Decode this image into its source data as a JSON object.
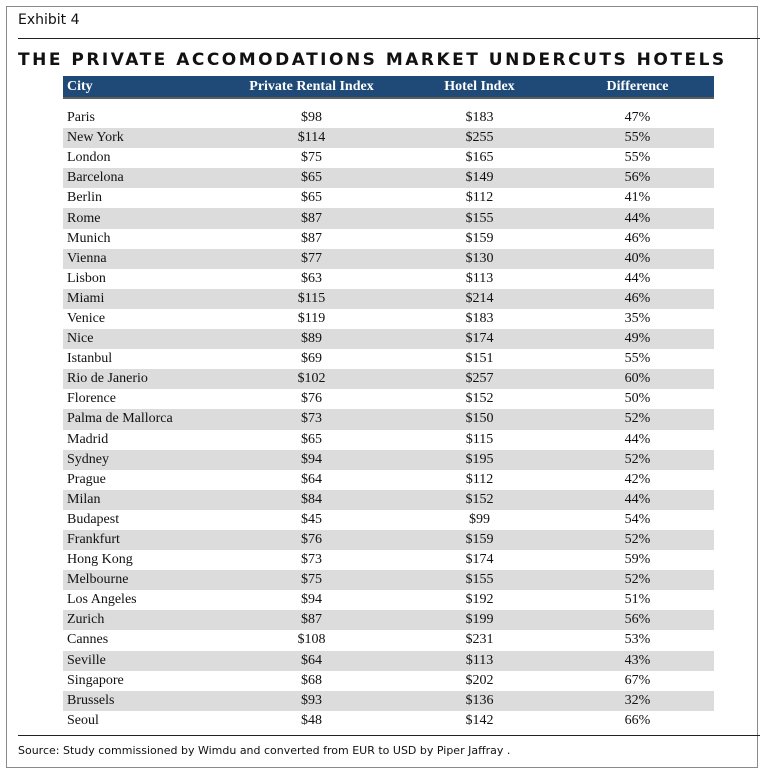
{
  "exhibit_label": "Exhibit 4",
  "source_note": "Source: Study commissioned by Wimdu and converted from EUR to USD by Piper Jaffray .",
  "colors": {
    "header_bg": "#1f4a78",
    "header_text": "#ffffff",
    "stripe": "#dcdcdc"
  },
  "chart_data": {
    "type": "table",
    "title": "THE PRIVATE ACCOMODATIONS MARKET UNDERCUTS HOTELS",
    "columns": [
      "City",
      "Private Rental Index",
      "Hotel Index",
      "Difference"
    ],
    "rows": [
      [
        "Paris",
        "$98",
        "$183",
        "47%"
      ],
      [
        "New York",
        "$114",
        "$255",
        "55%"
      ],
      [
        "London",
        "$75",
        "$165",
        "55%"
      ],
      [
        "Barcelona",
        "$65",
        "$149",
        "56%"
      ],
      [
        "Berlin",
        "$65",
        "$112",
        "41%"
      ],
      [
        "Rome",
        "$87",
        "$155",
        "44%"
      ],
      [
        "Munich",
        "$87",
        "$159",
        "46%"
      ],
      [
        "Vienna",
        "$77",
        "$130",
        "40%"
      ],
      [
        "Lisbon",
        "$63",
        "$113",
        "44%"
      ],
      [
        "Miami",
        "$115",
        "$214",
        "46%"
      ],
      [
        "Venice",
        "$119",
        "$183",
        "35%"
      ],
      [
        "Nice",
        "$89",
        "$174",
        "49%"
      ],
      [
        "Istanbul",
        "$69",
        "$151",
        "55%"
      ],
      [
        "Rio de Janerio",
        "$102",
        "$257",
        "60%"
      ],
      [
        "Florence",
        "$76",
        "$152",
        "50%"
      ],
      [
        "Palma de Mallorca",
        "$73",
        "$150",
        "52%"
      ],
      [
        "Madrid",
        "$65",
        "$115",
        "44%"
      ],
      [
        "Sydney",
        "$94",
        "$195",
        "52%"
      ],
      [
        "Prague",
        "$64",
        "$112",
        "42%"
      ],
      [
        "Milan",
        "$84",
        "$152",
        "44%"
      ],
      [
        "Budapest",
        "$45",
        "$99",
        "54%"
      ],
      [
        "Frankfurt",
        "$76",
        "$159",
        "52%"
      ],
      [
        "Hong Kong",
        "$73",
        "$174",
        "59%"
      ],
      [
        "Melbourne",
        "$75",
        "$155",
        "52%"
      ],
      [
        "Los Angeles",
        "$94",
        "$192",
        "51%"
      ],
      [
        "Zurich",
        "$87",
        "$199",
        "56%"
      ],
      [
        "Cannes",
        "$108",
        "$231",
        "53%"
      ],
      [
        "Seville",
        "$64",
        "$113",
        "43%"
      ],
      [
        "Singapore",
        "$68",
        "$202",
        "67%"
      ],
      [
        "Brussels",
        "$93",
        "$136",
        "32%"
      ],
      [
        "Seoul",
        "$48",
        "$142",
        "66%"
      ]
    ]
  }
}
